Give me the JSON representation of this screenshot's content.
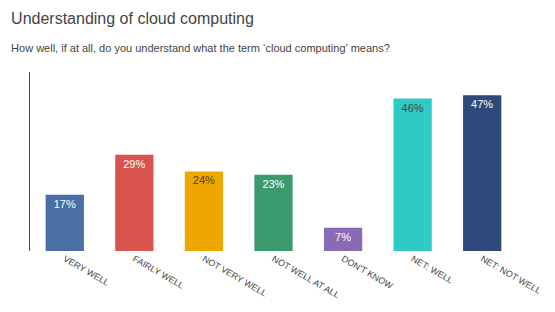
{
  "chart_data": {
    "type": "bar",
    "title": "Understanding of cloud computing",
    "subtitle": "How well, if at all, do you understand what the term ‘cloud computing’ means?",
    "categories": [
      "VERY WELL",
      "FAIRLY WELL",
      "NOT VERY WELL",
      "NOT WELL AT ALL",
      "DON'T KNOW",
      "NET: WELL",
      "NET: NOT WELL"
    ],
    "values": [
      17,
      29,
      24,
      23,
      7,
      46,
      47
    ],
    "value_labels": [
      "17%",
      "29%",
      "24%",
      "23%",
      "7%",
      "46%",
      "47%"
    ],
    "colors": [
      "#4a6fa5",
      "#d9534f",
      "#f0a500",
      "#3a9a6e",
      "#8b6ab5",
      "#2ecbc4",
      "#2e4a7a"
    ],
    "ylim": [
      0,
      54
    ],
    "grid": false,
    "tick_labels": "x",
    "data_labels": true
  }
}
